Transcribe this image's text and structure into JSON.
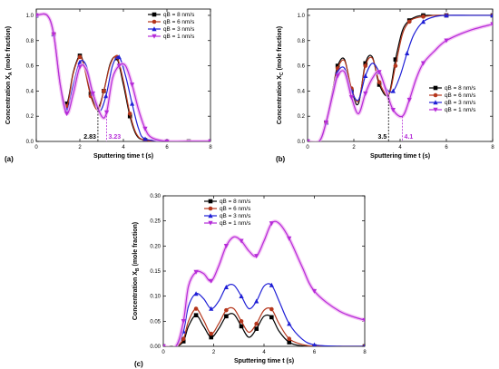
{
  "series_colors": [
    "#000000",
    "#b5361c",
    "#1f1fd6",
    "#b52bd8"
  ],
  "series_band_color": "#f2b5f2",
  "legend_labels": [
    "qB = 8 nm/s",
    "qB = 6 nm/s",
    "qB = 3 nm/s",
    "qB = 1 nm/s"
  ],
  "chart_data": [
    {
      "type": "line",
      "panel_label": "(a)",
      "xlabel": "Sputtering time t (s)",
      "ylabel_main": "Concentration X",
      "ylabel_sub": "A",
      "ylabel_tail": " (mole fraction)",
      "xlim": [
        0,
        8
      ],
      "ylim": [
        0.0,
        1.05
      ],
      "xticks": [
        "0",
        "2",
        "4",
        "6",
        "8"
      ],
      "yticks": [
        "0.0",
        "0.2",
        "0.4",
        "0.6",
        "0.8",
        "1.0"
      ],
      "ytick_values": [
        0.0,
        0.2,
        0.4,
        0.6,
        0.8,
        1.0
      ],
      "legend_position": "top-right",
      "annotations": [
        {
          "text": "2.83",
          "x": 2.83,
          "color": "#000000"
        },
        {
          "text": "3.23",
          "x": 3.23,
          "color": "#b52bd8"
        }
      ],
      "series": [
        {
          "name": "qB = 8 nm/s",
          "x": [
            0,
            0.5,
            0.8,
            1.1,
            1.4,
            1.7,
            2.0,
            2.2,
            2.5,
            2.83,
            3.1,
            3.4,
            3.7,
            4.0,
            4.3,
            4.6,
            5.0,
            6,
            7,
            8
          ],
          "y": [
            1.0,
            1.0,
            0.85,
            0.45,
            0.3,
            0.55,
            0.68,
            0.6,
            0.38,
            0.27,
            0.4,
            0.62,
            0.66,
            0.45,
            0.2,
            0.05,
            0.01,
            0.0,
            0.0,
            0.0
          ]
        },
        {
          "name": "qB = 6 nm/s",
          "x": [
            0,
            0.5,
            0.8,
            1.1,
            1.4,
            1.7,
            2.0,
            2.2,
            2.5,
            2.83,
            3.1,
            3.4,
            3.7,
            4.0,
            4.3,
            4.6,
            5.0,
            6,
            7,
            8
          ],
          "y": [
            1.0,
            1.0,
            0.85,
            0.45,
            0.28,
            0.54,
            0.67,
            0.59,
            0.36,
            0.25,
            0.4,
            0.61,
            0.67,
            0.48,
            0.22,
            0.06,
            0.01,
            0.0,
            0.0,
            0.0
          ]
        },
        {
          "name": "qB = 3 nm/s",
          "x": [
            0,
            0.5,
            0.8,
            1.1,
            1.4,
            1.7,
            2.0,
            2.3,
            2.6,
            2.9,
            3.2,
            3.5,
            3.8,
            4.1,
            4.4,
            4.7,
            5.0,
            6,
            7,
            8
          ],
          "y": [
            1.0,
            1.0,
            0.85,
            0.45,
            0.25,
            0.45,
            0.63,
            0.6,
            0.38,
            0.24,
            0.36,
            0.6,
            0.67,
            0.52,
            0.3,
            0.1,
            0.02,
            0.0,
            0.0,
            0.0
          ]
        },
        {
          "name": "qB = 1 nm/s",
          "x": [
            0,
            0.5,
            0.8,
            1.1,
            1.4,
            1.7,
            2.0,
            2.3,
            2.6,
            3.0,
            3.23,
            3.5,
            3.8,
            4.1,
            4.4,
            4.7,
            5.0,
            5.3,
            6,
            7,
            8
          ],
          "y": [
            1.0,
            1.0,
            0.85,
            0.45,
            0.22,
            0.38,
            0.59,
            0.57,
            0.38,
            0.2,
            0.23,
            0.5,
            0.6,
            0.6,
            0.45,
            0.25,
            0.1,
            0.03,
            0.0,
            0.0,
            0.0
          ]
        }
      ]
    },
    {
      "type": "line",
      "panel_label": "(b)",
      "xlabel": "Sputtering time t (s)",
      "ylabel_main": "Concentration X",
      "ylabel_sub": "C",
      "ylabel_tail": " (mole fraction)",
      "xlim": [
        0,
        8
      ],
      "ylim": [
        0.0,
        1.05
      ],
      "xticks": [
        "0",
        "2",
        "4",
        "6",
        "8"
      ],
      "yticks": [
        "0.0",
        "0.2",
        "0.4",
        "0.6",
        "0.8",
        "1.0"
      ],
      "ytick_values": [
        0.0,
        0.2,
        0.4,
        0.6,
        0.8,
        1.0
      ],
      "legend_position": "center-right",
      "annotations": [
        {
          "text": "3.5",
          "x": 3.5,
          "color": "#000000"
        },
        {
          "text": "4.1",
          "x": 4.1,
          "color": "#b52bd8"
        }
      ],
      "series": [
        {
          "name": "qB = 8 nm/s",
          "x": [
            0,
            0.5,
            0.8,
            1.1,
            1.3,
            1.6,
            1.9,
            2.2,
            2.5,
            2.8,
            3.1,
            3.5,
            3.8,
            4.1,
            4.4,
            4.7,
            5.0,
            5.5,
            6,
            7,
            8
          ],
          "y": [
            0.0,
            0.0,
            0.15,
            0.42,
            0.6,
            0.65,
            0.4,
            0.3,
            0.62,
            0.67,
            0.45,
            0.37,
            0.65,
            0.88,
            0.96,
            0.99,
            1.0,
            1.0,
            1.0,
            1.0,
            1.0
          ]
        },
        {
          "name": "qB = 6 nm/s",
          "x": [
            0,
            0.5,
            0.8,
            1.1,
            1.3,
            1.6,
            1.9,
            2.2,
            2.5,
            2.8,
            3.1,
            3.5,
            3.8,
            4.1,
            4.4,
            4.7,
            5.0,
            5.5,
            6,
            7,
            8
          ],
          "y": [
            0.0,
            0.0,
            0.15,
            0.42,
            0.58,
            0.64,
            0.42,
            0.32,
            0.6,
            0.66,
            0.47,
            0.37,
            0.6,
            0.85,
            0.95,
            0.98,
            0.99,
            1.0,
            1.0,
            1.0,
            1.0
          ]
        },
        {
          "name": "qB = 3 nm/s",
          "x": [
            0,
            0.5,
            0.8,
            1.1,
            1.3,
            1.6,
            1.9,
            2.2,
            2.5,
            2.8,
            3.1,
            3.4,
            3.7,
            4.0,
            4.3,
            4.6,
            5.0,
            5.5,
            6,
            7,
            8
          ],
          "y": [
            0.0,
            0.0,
            0.15,
            0.4,
            0.55,
            0.58,
            0.4,
            0.33,
            0.52,
            0.62,
            0.55,
            0.42,
            0.4,
            0.52,
            0.7,
            0.85,
            0.95,
            0.99,
            1.0,
            1.0,
            1.0
          ]
        },
        {
          "name": "qB = 1 nm/s",
          "x": [
            0,
            0.5,
            0.8,
            1.1,
            1.3,
            1.6,
            1.9,
            2.2,
            2.5,
            2.8,
            3.1,
            3.4,
            3.7,
            4.1,
            4.4,
            4.7,
            5.0,
            5.5,
            6,
            7,
            8
          ],
          "y": [
            0.0,
            0.0,
            0.15,
            0.38,
            0.52,
            0.55,
            0.35,
            0.22,
            0.38,
            0.5,
            0.55,
            0.4,
            0.25,
            0.2,
            0.33,
            0.5,
            0.62,
            0.72,
            0.8,
            0.88,
            0.93
          ]
        }
      ]
    },
    {
      "type": "line",
      "panel_label": "(c)",
      "xlabel": "Sputtering time t (s)",
      "ylabel_main": "Concentration X",
      "ylabel_sub": "B",
      "ylabel_tail": " (mole fraction)",
      "xlim": [
        0,
        8
      ],
      "ylim": [
        0.0,
        0.3
      ],
      "xticks": [
        "0",
        "2",
        "4",
        "6",
        "8"
      ],
      "yticks": [
        "0.00",
        "0.05",
        "0.10",
        "0.15",
        "0.20",
        "0.25",
        "0.30"
      ],
      "ytick_values": [
        0.0,
        0.05,
        0.1,
        0.15,
        0.2,
        0.25,
        0.3
      ],
      "legend_position": "top-right",
      "annotations": [],
      "series": [
        {
          "name": "qB = 8 nm/s",
          "x": [
            0,
            0.5,
            0.8,
            1.0,
            1.3,
            1.6,
            1.9,
            2.2,
            2.5,
            2.8,
            3.1,
            3.4,
            3.7,
            4.0,
            4.3,
            4.6,
            5.0,
            5.5,
            6,
            7,
            8
          ],
          "y": [
            0,
            0,
            0.01,
            0.04,
            0.062,
            0.04,
            0.018,
            0.035,
            0.06,
            0.064,
            0.04,
            0.018,
            0.035,
            0.06,
            0.058,
            0.03,
            0.008,
            0.001,
            0,
            0,
            0
          ]
        },
        {
          "name": "qB = 6 nm/s",
          "x": [
            0,
            0.5,
            0.8,
            1.0,
            1.3,
            1.6,
            1.9,
            2.2,
            2.5,
            2.8,
            3.1,
            3.4,
            3.7,
            4.0,
            4.3,
            4.6,
            5.0,
            5.5,
            6,
            7,
            8
          ],
          "y": [
            0,
            0,
            0.015,
            0.05,
            0.075,
            0.052,
            0.025,
            0.045,
            0.072,
            0.075,
            0.05,
            0.028,
            0.045,
            0.072,
            0.074,
            0.045,
            0.015,
            0.004,
            0,
            0,
            0
          ]
        },
        {
          "name": "qB = 3 nm/s",
          "x": [
            0,
            0.5,
            0.8,
            1.0,
            1.3,
            1.6,
            1.9,
            2.2,
            2.5,
            2.8,
            3.1,
            3.4,
            3.7,
            4.0,
            4.3,
            4.6,
            5.0,
            5.5,
            6,
            7,
            8
          ],
          "y": [
            0,
            0,
            0.03,
            0.08,
            0.105,
            0.095,
            0.075,
            0.09,
            0.118,
            0.122,
            0.1,
            0.075,
            0.09,
            0.12,
            0.122,
            0.09,
            0.045,
            0.015,
            0.003,
            0,
            0
          ]
        },
        {
          "name": "qB = 1 nm/s",
          "x": [
            0,
            0.5,
            0.8,
            1.0,
            1.3,
            1.6,
            1.9,
            2.2,
            2.5,
            2.8,
            3.1,
            3.4,
            3.7,
            4.0,
            4.3,
            4.6,
            5.0,
            5.5,
            6,
            7,
            8
          ],
          "y": [
            0,
            0,
            0.05,
            0.12,
            0.148,
            0.145,
            0.13,
            0.16,
            0.2,
            0.218,
            0.21,
            0.19,
            0.18,
            0.21,
            0.245,
            0.245,
            0.215,
            0.16,
            0.11,
            0.07,
            0.052
          ]
        }
      ]
    }
  ]
}
